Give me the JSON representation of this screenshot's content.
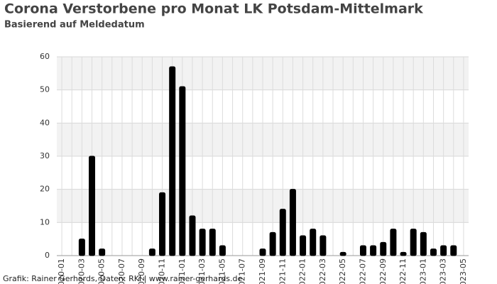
{
  "chart_data": {
    "type": "bar",
    "title": "Corona Verstorbene pro Monat LK Potsdam-Mittelmark",
    "subtitle": "Basierend auf Meldedatum",
    "footer": "Grafik: Rainer Gerhards, Daten: RKI | www.rainer-gerhards.de",
    "categories": [
      "2020-01",
      null,
      "2020-03",
      null,
      "2020-05",
      null,
      "2020-07",
      null,
      "2020-09",
      null,
      "2020-11",
      null,
      "2021-01",
      null,
      "2021-03",
      null,
      "2021-05",
      null,
      "2021-07",
      null,
      "2021-09",
      null,
      "2021-11",
      null,
      "2022-01",
      null,
      "2022-03",
      null,
      "2022-05",
      null,
      "2022-07",
      null,
      "2022-09",
      null,
      "2022-11",
      null,
      "2023-01",
      null,
      "2023-03",
      null,
      "2023-05"
    ],
    "values": [
      0,
      0,
      5,
      30,
      2,
      0,
      0,
      0,
      0,
      2,
      19,
      57,
      51,
      12,
      8,
      8,
      3,
      0,
      0,
      0,
      2,
      7,
      14,
      20,
      6,
      8,
      6,
      0,
      1,
      0,
      3,
      3,
      4,
      8,
      1,
      8,
      7,
      2,
      3,
      3,
      0
    ],
    "color": "#000000",
    "ylim": [
      0,
      60
    ],
    "yticks": [
      0,
      10,
      20,
      30,
      40,
      50,
      60
    ],
    "grid": true
  }
}
